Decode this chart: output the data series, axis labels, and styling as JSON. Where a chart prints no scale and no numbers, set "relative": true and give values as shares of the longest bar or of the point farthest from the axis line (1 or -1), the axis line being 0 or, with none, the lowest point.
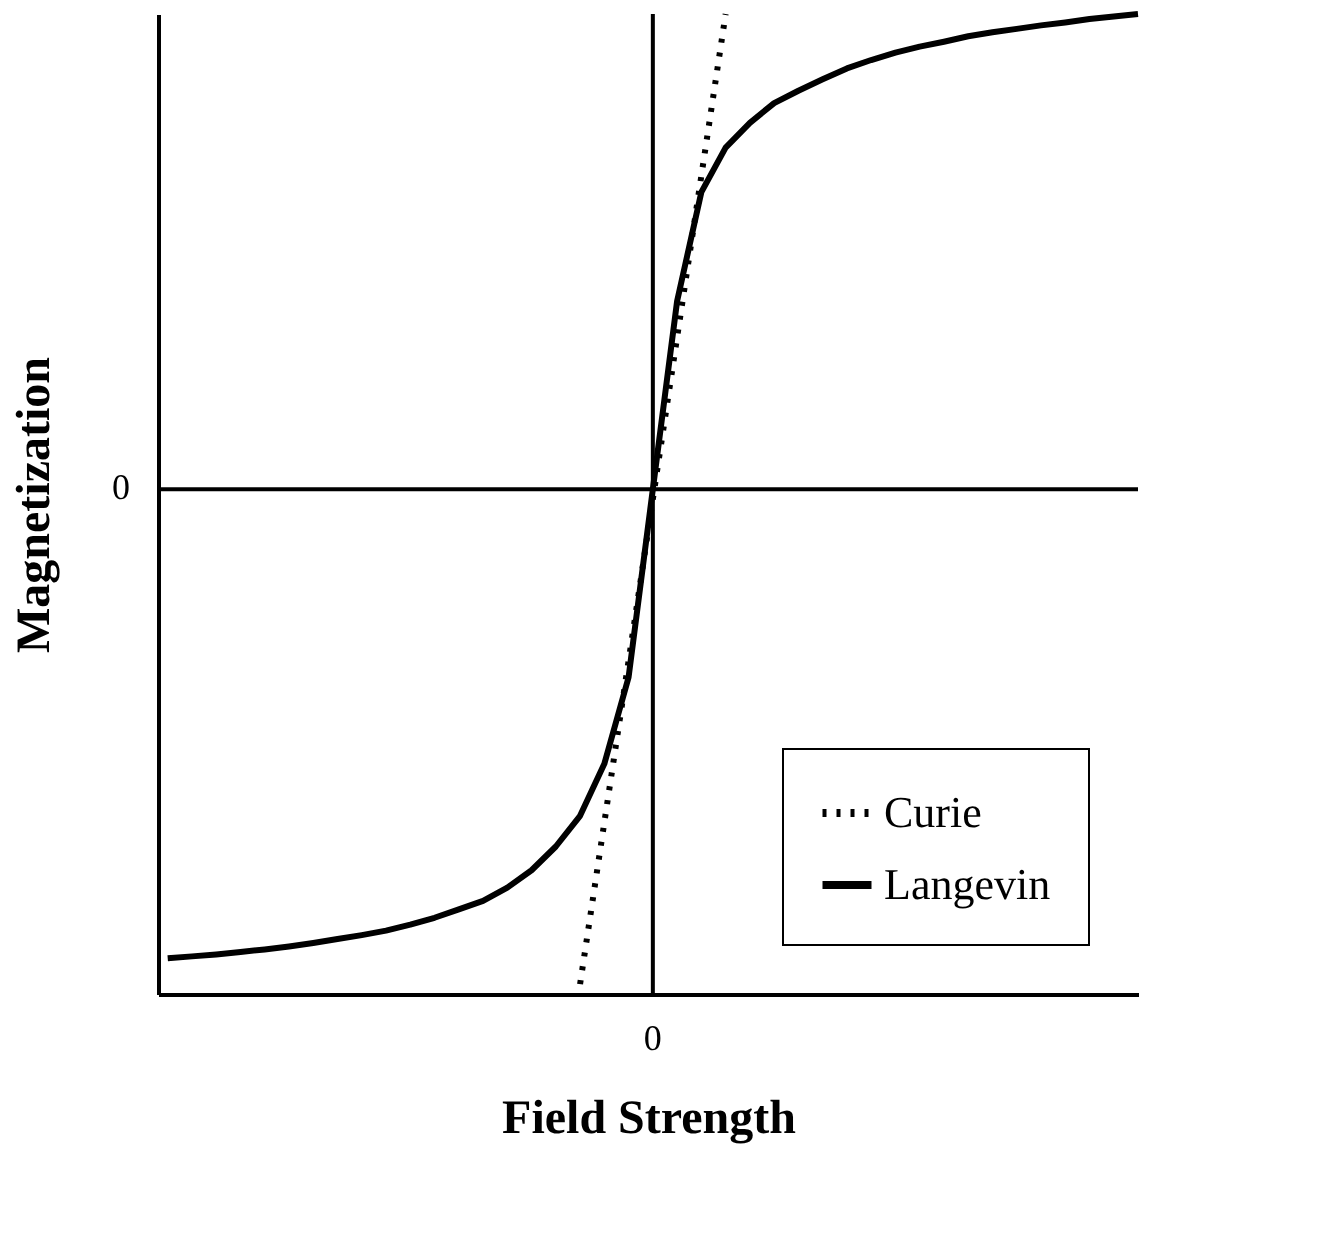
{
  "chart_data": {
    "type": "line",
    "relative": true,
    "xlabel": "Field Strength",
    "ylabel": "Magnetization",
    "annotations": [
      "0",
      "0"
    ],
    "legend": "bottom right",
    "marker": "none",
    "categories": [
      null,
      null,
      null,
      null,
      null,
      null,
      null,
      null,
      null,
      null,
      null,
      null,
      null,
      null,
      null,
      null,
      null,
      null,
      null,
      null,
      null,
      null,
      null,
      null,
      null,
      null,
      null,
      null,
      null,
      null,
      null,
      null,
      null,
      null,
      null,
      null,
      null,
      null,
      null,
      null,
      null
    ],
    "series": [
      {
        "name": "Curie",
        "color": "#000000",
        "line_style": "dotted",
        "values": [
          null,
          null,
          null,
          null,
          null,
          null,
          null,
          null,
          null,
          null,
          null,
          null,
          null,
          null,
          null,
          null,
          null,
          -1.0,
          null,
          null,
          null,
          null,
          null,
          0.96,
          null,
          null,
          null,
          null,
          null,
          null,
          null,
          null,
          null,
          null,
          null,
          null,
          null,
          null,
          null,
          null,
          null
        ]
      },
      {
        "name": "Langevin",
        "color": "#000000",
        "line_style": "solid",
        "values": [
          -0.948,
          -0.944,
          -0.94,
          -0.935,
          -0.93,
          -0.924,
          -0.917,
          -0.909,
          -0.901,
          -0.892,
          -0.88,
          -0.866,
          -0.849,
          -0.832,
          -0.805,
          -0.77,
          -0.722,
          -0.66,
          -0.555,
          -0.38,
          0,
          0.38,
          0.6,
          0.69,
          0.74,
          0.78,
          0.805,
          0.828,
          0.85,
          0.867,
          0.882,
          0.894,
          0.904,
          0.915,
          0.923,
          0.93,
          0.937,
          0.943,
          0.95,
          0.955,
          0.96
        ]
      }
    ]
  }
}
